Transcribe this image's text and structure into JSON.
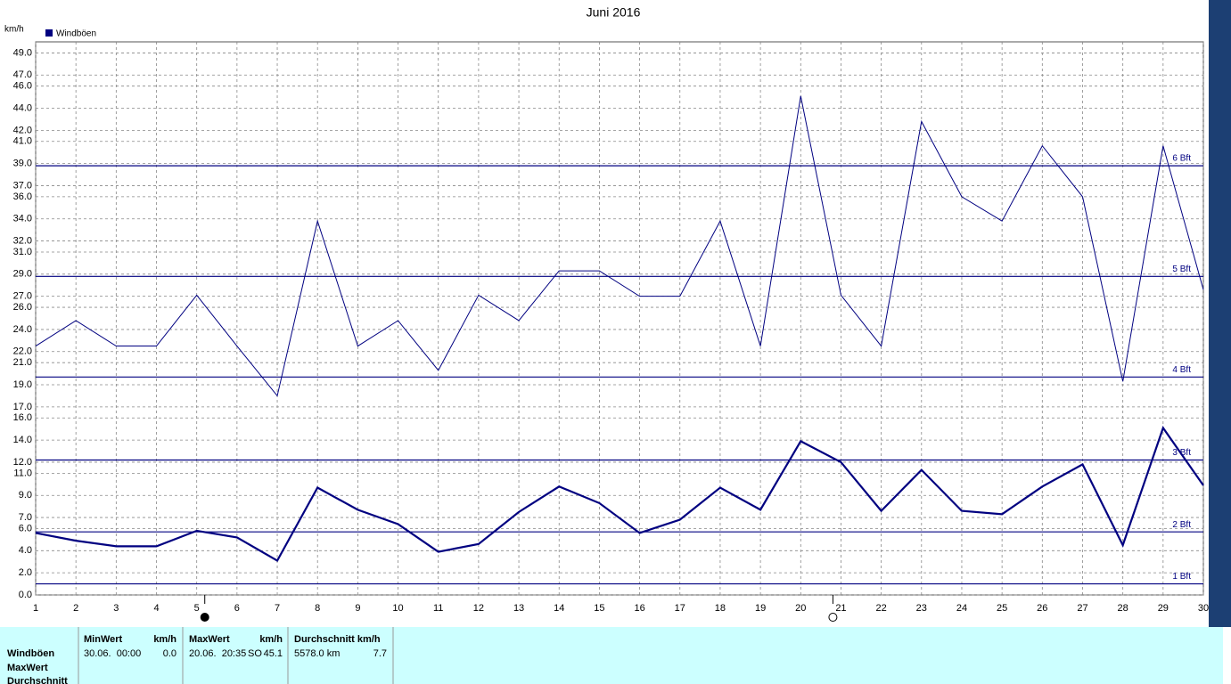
{
  "chart_data": {
    "type": "line",
    "title": "Juni 2016",
    "y_unit": "km/h",
    "x": [
      1,
      2,
      3,
      4,
      5,
      6,
      7,
      8,
      9,
      10,
      11,
      12,
      13,
      14,
      15,
      16,
      17,
      18,
      19,
      20,
      21,
      22,
      23,
      24,
      25,
      26,
      27,
      28,
      29,
      30
    ],
    "xlim": [
      1,
      30
    ],
    "xticks": [
      1,
      2,
      3,
      4,
      5,
      6,
      7,
      8,
      9,
      10,
      11,
      12,
      13,
      14,
      15,
      16,
      17,
      18,
      19,
      20,
      21,
      22,
      23,
      24,
      25,
      26,
      27,
      28,
      29,
      30
    ],
    "ylim": [
      0,
      50
    ],
    "yticks": [
      {
        "value": 0,
        "label": "0.0"
      },
      {
        "value": 2,
        "label": "2.0"
      },
      {
        "value": 4,
        "label": "4.0"
      },
      {
        "value": 6,
        "label": "6.0"
      },
      {
        "value": 7,
        "label": "7.0"
      },
      {
        "value": 9,
        "label": "9.0"
      },
      {
        "value": 11,
        "label": "11.0"
      },
      {
        "value": 12,
        "label": "12.0"
      },
      {
        "value": 14,
        "label": "14.0"
      },
      {
        "value": 16,
        "label": "16.0"
      },
      {
        "value": 17,
        "label": "17.0"
      },
      {
        "value": 19,
        "label": "19.0"
      },
      {
        "value": 21,
        "label": "21.0"
      },
      {
        "value": 22,
        "label": "22.0"
      },
      {
        "value": 24,
        "label": "24.0"
      },
      {
        "value": 26,
        "label": "26.0"
      },
      {
        "value": 27,
        "label": "27.0"
      },
      {
        "value": 29,
        "label": "29.0"
      },
      {
        "value": 31,
        "label": "31.0"
      },
      {
        "value": 32,
        "label": "32.0"
      },
      {
        "value": 34,
        "label": "34.0"
      },
      {
        "value": 36,
        "label": "36.0"
      },
      {
        "value": 37,
        "label": "37.0"
      },
      {
        "value": 39,
        "label": "39.0"
      },
      {
        "value": 41,
        "label": "41.0"
      },
      {
        "value": 42,
        "label": "42.0"
      },
      {
        "value": 44,
        "label": "44.0"
      },
      {
        "value": 46,
        "label": "46.0"
      },
      {
        "value": 47,
        "label": "47.0"
      },
      {
        "value": 49,
        "label": "49.0"
      }
    ],
    "grid": true,
    "series": [
      {
        "name": "Windböen",
        "color": "#000080",
        "width": 1,
        "values": [
          22.5,
          24.8,
          22.5,
          22.5,
          27.1,
          22.5,
          18.0,
          33.8,
          22.5,
          24.8,
          20.3,
          27.1,
          24.8,
          29.3,
          29.3,
          27.0,
          27.0,
          33.8,
          22.5,
          45.1,
          27.1,
          22.5,
          42.8,
          36.0,
          33.8,
          40.6,
          36.0,
          19.3,
          40.6,
          27.6
        ]
      },
      {
        "color": "#000080",
        "width": 2.2,
        "values": [
          5.6,
          4.9,
          4.4,
          4.4,
          5.8,
          5.2,
          3.1,
          9.7,
          7.7,
          6.4,
          3.9,
          4.6,
          7.5,
          9.8,
          8.3,
          5.6,
          6.8,
          9.7,
          7.7,
          13.9,
          12.0,
          7.6,
          11.3,
          7.6,
          7.3,
          9.8,
          11.8,
          4.5,
          15.1,
          9.9
        ]
      }
    ],
    "reference_lines": [
      {
        "value": 1.0,
        "label": "1 Bft"
      },
      {
        "value": 5.7,
        "label": "2 Bft"
      },
      {
        "value": 12.2,
        "label": "3 Bft"
      },
      {
        "value": 19.7,
        "label": "4 Bft"
      },
      {
        "value": 28.8,
        "label": "5 Bft"
      },
      {
        "value": 38.8,
        "label": "6 Bft"
      }
    ],
    "reference_color": "#000080",
    "moon_markers": [
      {
        "x": 5.2,
        "fill": "#000"
      },
      {
        "x": 20.8,
        "fill": "#fff"
      }
    ]
  },
  "stats_table": {
    "row_labels": [
      "Windböen",
      "MaxWert",
      "Durchschnitt"
    ],
    "headers": [
      "MinWert",
      "km/h",
      "MaxWert",
      "km/h",
      "Durchschnitt km/h"
    ],
    "min_time": "30.06.  00:00",
    "min_value": "0.0",
    "max_time": "20.06.  20:35",
    "max_dir": "SO",
    "max_value": "45.1",
    "distance": "5578.0 km",
    "average": "7.7"
  }
}
